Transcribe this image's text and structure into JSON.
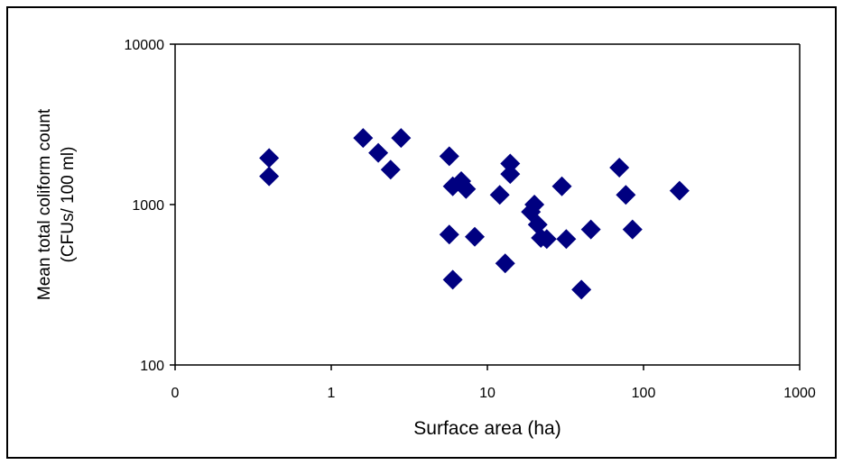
{
  "chart_data": {
    "type": "scatter",
    "xlabel": "Surface area (ha)",
    "ylabel_line1": "Mean total coliform count",
    "ylabel_line2": "(CFUs/ 100 ml)",
    "xscale": "log",
    "yscale": "log",
    "xlim": [
      0.1,
      1000
    ],
    "ylim": [
      100,
      10000
    ],
    "x_tick_values": [
      0.1,
      1,
      10,
      100,
      1000
    ],
    "x_tick_labels": [
      "0",
      "1",
      "10",
      "100",
      "1000"
    ],
    "y_tick_values": [
      100,
      1000,
      10000
    ],
    "y_tick_labels": [
      "100",
      "1000",
      "10000"
    ],
    "grid": false,
    "legend": "none",
    "marker": "diamond",
    "marker_color": "#000080",
    "points": [
      {
        "x": 0.4,
        "y": 1950
      },
      {
        "x": 0.4,
        "y": 1500
      },
      {
        "x": 1.6,
        "y": 2600
      },
      {
        "x": 2.0,
        "y": 2100
      },
      {
        "x": 2.4,
        "y": 1650
      },
      {
        "x": 2.8,
        "y": 2600
      },
      {
        "x": 5.7,
        "y": 2000
      },
      {
        "x": 5.7,
        "y": 650
      },
      {
        "x": 6.0,
        "y": 1300
      },
      {
        "x": 6.0,
        "y": 340
      },
      {
        "x": 6.8,
        "y": 1400
      },
      {
        "x": 7.3,
        "y": 1250
      },
      {
        "x": 8.3,
        "y": 630
      },
      {
        "x": 12,
        "y": 1150
      },
      {
        "x": 13,
        "y": 430
      },
      {
        "x": 14,
        "y": 1800
      },
      {
        "x": 14,
        "y": 1550
      },
      {
        "x": 19,
        "y": 900
      },
      {
        "x": 20,
        "y": 1000
      },
      {
        "x": 21,
        "y": 750
      },
      {
        "x": 22,
        "y": 620
      },
      {
        "x": 24,
        "y": 610
      },
      {
        "x": 30,
        "y": 1300
      },
      {
        "x": 32,
        "y": 610
      },
      {
        "x": 40,
        "y": 295
      },
      {
        "x": 46,
        "y": 700
      },
      {
        "x": 70,
        "y": 1700
      },
      {
        "x": 77,
        "y": 1150
      },
      {
        "x": 85,
        "y": 700
      },
      {
        "x": 170,
        "y": 1220
      }
    ]
  }
}
